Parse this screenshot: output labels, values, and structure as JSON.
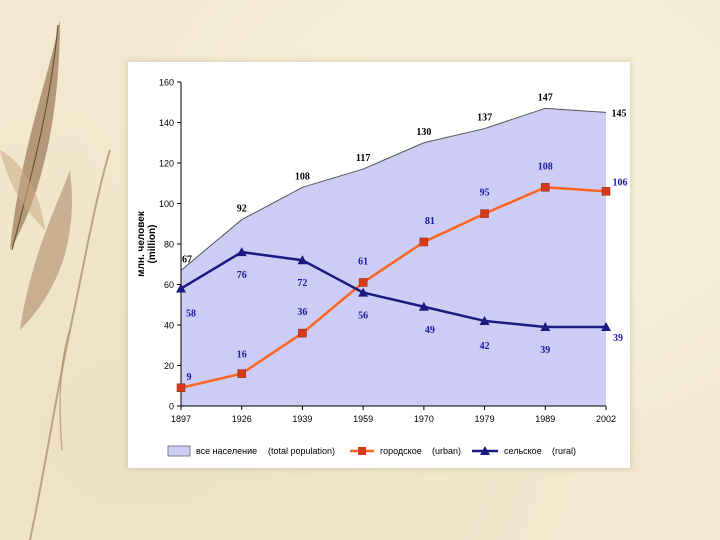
{
  "colors": {
    "area_fill": "#ccccf5",
    "area_stroke": "#555555",
    "urban": "#ff6420",
    "urban_marker": "#d63a1a",
    "rural": "#1a1a80",
    "label_blue": "#1a1aa0",
    "label_black": "#000000"
  },
  "chart_data": {
    "type": "area+line",
    "x": [
      "1897",
      "1926",
      "1939",
      "1959",
      "1970",
      "1979",
      "1989",
      "2002"
    ],
    "ylim": [
      0,
      160
    ],
    "yticks": [
      "0",
      "20",
      "40",
      "60",
      "80",
      "100",
      "120",
      "140",
      "160"
    ],
    "ylabel_line1": "млн. человек",
    "ylabel_line2": "(million)",
    "series": [
      {
        "name": "все население",
        "name_en": "(total population)",
        "kind": "area",
        "values": [
          67,
          92,
          108,
          117,
          130,
          137,
          147,
          145
        ],
        "labels": [
          "67",
          "92",
          "108",
          "117",
          "130",
          "137",
          "147",
          "145"
        ]
      },
      {
        "name": "городское",
        "name_en": "(urban)",
        "kind": "line",
        "marker": "square",
        "values": [
          9,
          16,
          36,
          61,
          81,
          95,
          108,
          106
        ],
        "labels": [
          "9",
          "16",
          "36",
          "61",
          "81",
          "95",
          "108",
          "106"
        ]
      },
      {
        "name": "сельское",
        "name_en": "(rural)",
        "kind": "line",
        "marker": "triangle",
        "values": [
          58,
          76,
          72,
          56,
          49,
          42,
          39,
          39
        ],
        "labels": [
          "58",
          "76",
          "72",
          "56",
          "49",
          "42",
          "39",
          "39"
        ]
      }
    ],
    "grid": false,
    "legend_position": "bottom"
  }
}
